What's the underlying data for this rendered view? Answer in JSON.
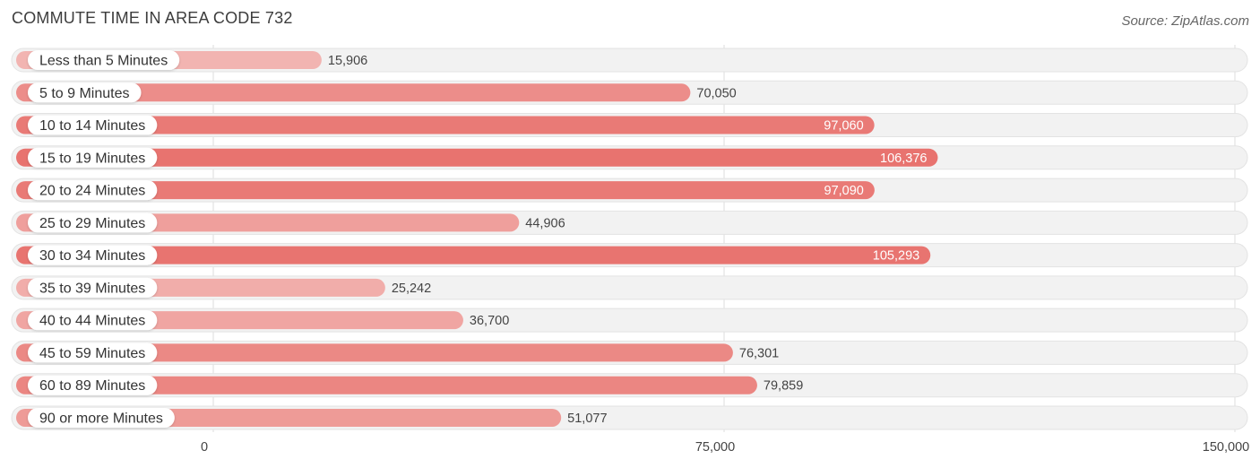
{
  "header": {
    "title": "COMMUTE TIME IN AREA CODE 732",
    "source": "Source: ZipAtlas.com"
  },
  "colors": {
    "bar_max": "#e8736f",
    "bar_min": "#f2b4b1",
    "label_inside": "#ffffff",
    "label_outside": "#444444"
  },
  "chart_data": {
    "type": "bar",
    "orientation": "horizontal",
    "title": "COMMUTE TIME IN AREA CODE 732",
    "categories": [
      "Less than 5 Minutes",
      "5 to 9 Minutes",
      "10 to 14 Minutes",
      "15 to 19 Minutes",
      "20 to 24 Minutes",
      "25 to 29 Minutes",
      "30 to 34 Minutes",
      "35 to 39 Minutes",
      "40 to 44 Minutes",
      "45 to 59 Minutes",
      "60 to 89 Minutes",
      "90 or more Minutes"
    ],
    "values": [
      15906,
      70050,
      97060,
      106376,
      97090,
      44906,
      105293,
      25242,
      36700,
      76301,
      79859,
      51077
    ],
    "value_labels": [
      "15,906",
      "70,050",
      "97,060",
      "106,376",
      "97,090",
      "44,906",
      "105,293",
      "25,242",
      "36,700",
      "76,301",
      "79,859",
      "51,077"
    ],
    "xlim": [
      0,
      150000
    ],
    "xticks": [
      0,
      75000,
      150000
    ],
    "xtick_labels": [
      "0",
      "75,000",
      "150,000"
    ],
    "grid": true,
    "inside_label_min": 90000
  }
}
